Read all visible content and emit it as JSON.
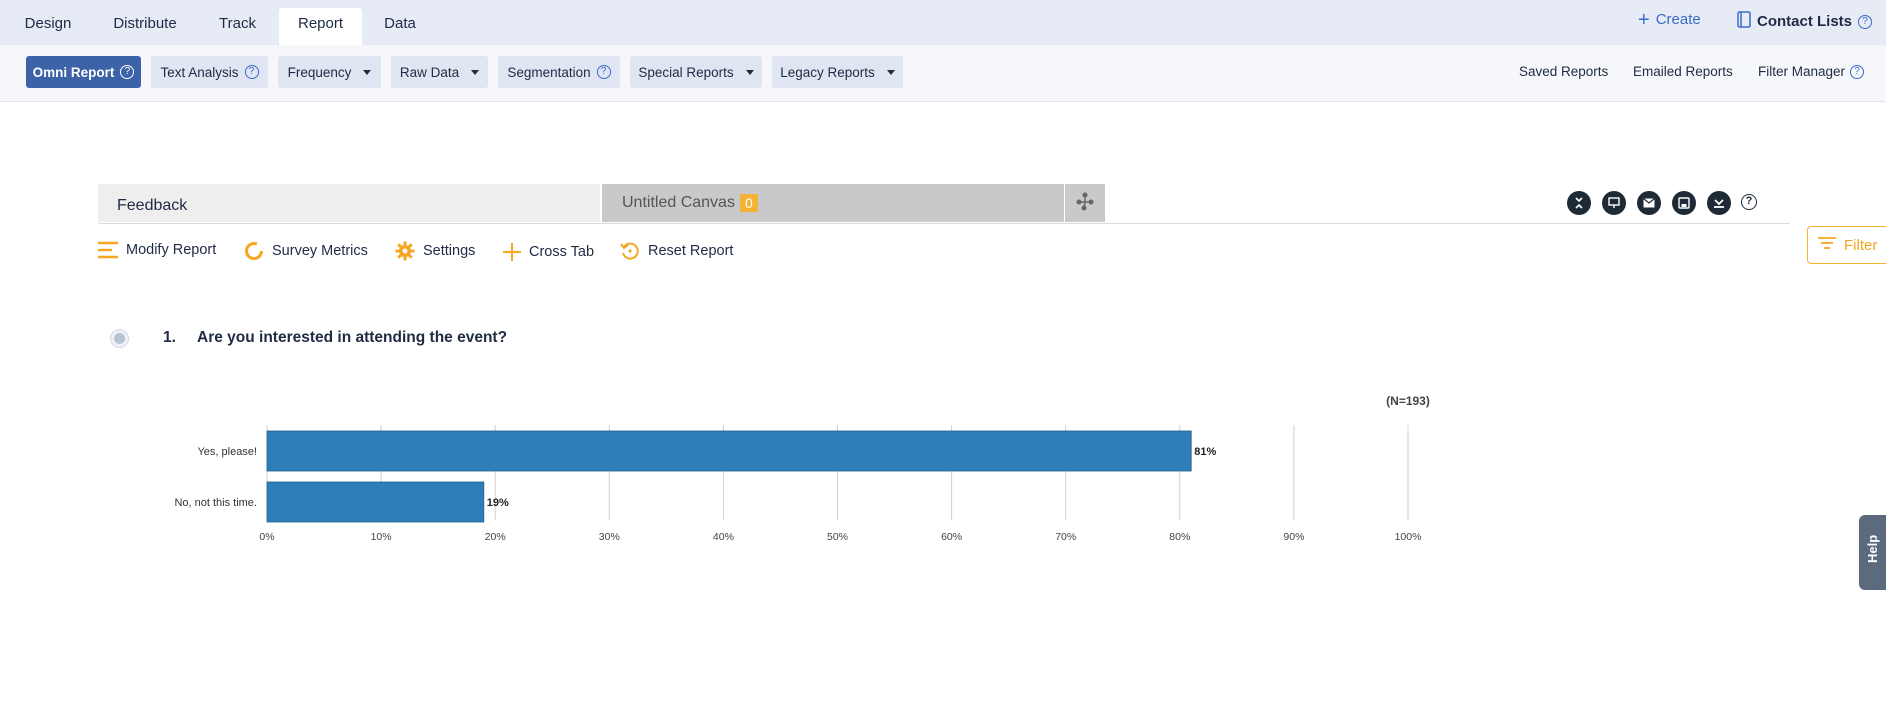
{
  "topnav": {
    "tabs": [
      {
        "label": "Design"
      },
      {
        "label": "Distribute"
      },
      {
        "label": "Track"
      },
      {
        "label": "Report"
      },
      {
        "label": "Data"
      }
    ],
    "active_tab": "Report",
    "create_label": "Create",
    "contact_lists_label": "Contact Lists"
  },
  "subbar": {
    "items": [
      {
        "label": "Omni Report",
        "help": true
      },
      {
        "label": "Text Analysis",
        "help": true
      },
      {
        "label": "Frequency",
        "dropdown": true
      },
      {
        "label": "Raw Data",
        "dropdown": true
      },
      {
        "label": "Segmentation",
        "help": true
      },
      {
        "label": "Special Reports",
        "dropdown": true
      },
      {
        "label": "Legacy Reports",
        "dropdown": true
      }
    ],
    "saved_reports": "Saved Reports",
    "emailed_reports": "Emailed Reports",
    "filter_manager": "Filter Manager"
  },
  "canvas_tabs": {
    "feedback": "Feedback",
    "untitled": "Untitled Canvas",
    "untitled_count": "0"
  },
  "filter_label": "Filter",
  "actions": {
    "modify": "Modify Report",
    "metrics": "Survey Metrics",
    "settings": "Settings",
    "crosstab": "Cross Tab",
    "reset": "Reset Report"
  },
  "question": {
    "number": "1.",
    "text": "Are you interested in attending the event?"
  },
  "help_tab": "Help",
  "colors": {
    "bar": "#2e7eb8",
    "accent": "#f5a623",
    "active_pill": "#3c62a8"
  },
  "chart_data": {
    "type": "bar",
    "orientation": "horizontal",
    "categories": [
      "Yes, please!",
      "No, not this time."
    ],
    "values": [
      81,
      19
    ],
    "value_labels": [
      "81%",
      "19%"
    ],
    "n_label": "(N=193)",
    "xlim": [
      0,
      100
    ],
    "x_ticks": [
      "0%",
      "10%",
      "20%",
      "30%",
      "40%",
      "50%",
      "60%",
      "70%",
      "80%",
      "90%",
      "100%"
    ],
    "grid": true,
    "title": "",
    "xlabel": "",
    "ylabel": ""
  }
}
